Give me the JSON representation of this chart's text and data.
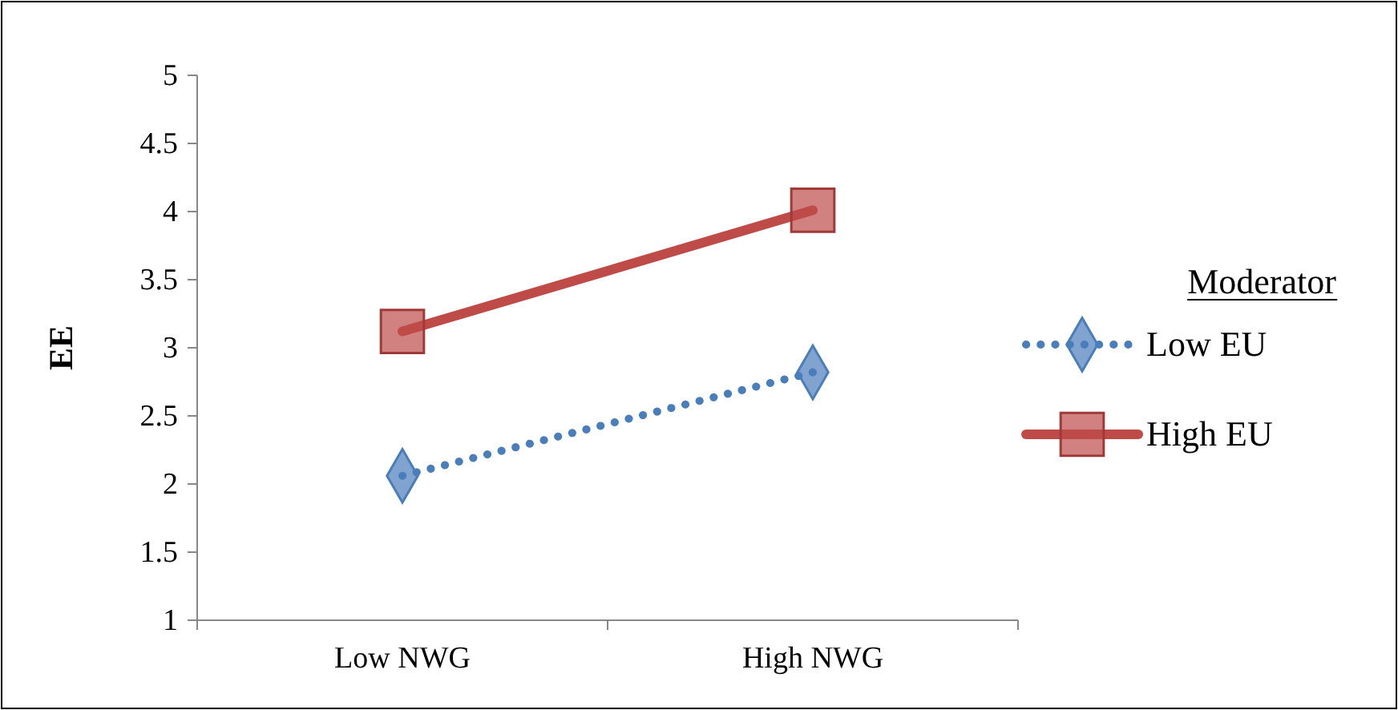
{
  "chart_data": {
    "type": "line",
    "ylabel": "EE",
    "legend_title": "Moderator",
    "legend": "right",
    "categories": [
      "Low NWG",
      "High NWG"
    ],
    "ylim": [
      1,
      5
    ],
    "yticks": [
      1,
      1.5,
      2,
      2.5,
      3,
      3.5,
      4,
      4.5,
      5
    ],
    "grid": false,
    "series": [
      {
        "name": "Low EU",
        "color": "#4a7ebb",
        "values": [
          2.06,
          2.82
        ],
        "marker": "diamond",
        "line_style": "dotted"
      },
      {
        "name": "High EU",
        "color": "#be4b48",
        "values": [
          3.12,
          4.01
        ],
        "marker": "square",
        "line_style": "solid"
      }
    ]
  }
}
